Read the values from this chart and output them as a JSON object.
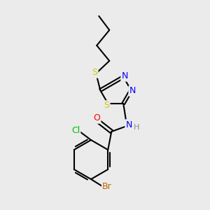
{
  "bg_color": "#ebebeb",
  "bond_color": "#000000",
  "bond_width": 1.5,
  "atom_colors": {
    "S": "#cccc00",
    "N": "#0000ff",
    "O": "#ff0000",
    "Cl": "#00bb00",
    "Br": "#bb6600",
    "C": "#000000",
    "H": "#888888"
  },
  "font_size": 9
}
